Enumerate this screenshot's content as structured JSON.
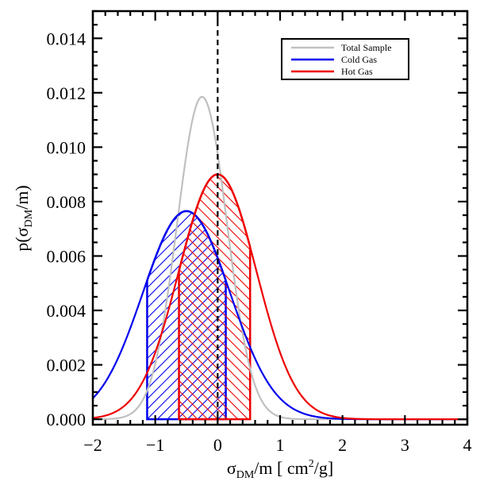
{
  "chart_data": {
    "type": "line",
    "title": "",
    "xlabel": "σDM/m [ cm2/g]",
    "xlabel_parts": {
      "sym": "σ",
      "sub": "DM",
      "mid": "/m [ cm",
      "sup": "2",
      "end": "/g]"
    },
    "ylabel": "p(σDM/m)",
    "ylabel_parts": {
      "pre": "p(σ",
      "sub": "DM",
      "post": "/m)"
    },
    "xlim": [
      -2,
      4
    ],
    "ylim": [
      -0.0002,
      0.015
    ],
    "x_ticks": [
      -2,
      -1,
      0,
      1,
      2,
      3,
      4
    ],
    "x_tick_labels": [
      "−2",
      "−1",
      "0",
      "1",
      "2",
      "3",
      "4"
    ],
    "y_ticks": [
      0.0,
      0.002,
      0.004,
      0.006,
      0.008,
      0.01,
      0.012,
      0.014
    ],
    "y_tick_labels": [
      "0.000",
      "0.002",
      "0.004",
      "0.006",
      "0.008",
      "0.010",
      "0.012",
      "0.014"
    ],
    "vertical_reference_line": {
      "x": 0,
      "style": "dashed",
      "color": "#000000"
    },
    "legend_placement": "top-right",
    "series": [
      {
        "name": "Total Sample",
        "color": "#c0c0c0",
        "mean": -0.25,
        "sigma": 0.4,
        "peak": 0.01185,
        "shaded": null
      },
      {
        "name": "Cold Gas",
        "color": "#0000ee",
        "mean": -0.5,
        "sigma": 0.7,
        "peak": 0.00765,
        "shaded": {
          "range": [
            -1.13,
            0.13
          ],
          "hatch": "forward"
        }
      },
      {
        "name": "Hot Gas",
        "color": "#ee0000",
        "mean": 0.0,
        "sigma": 0.62,
        "peak": 0.009,
        "shaded": {
          "range": [
            -0.62,
            0.52
          ],
          "hatch": "backward"
        }
      }
    ]
  }
}
